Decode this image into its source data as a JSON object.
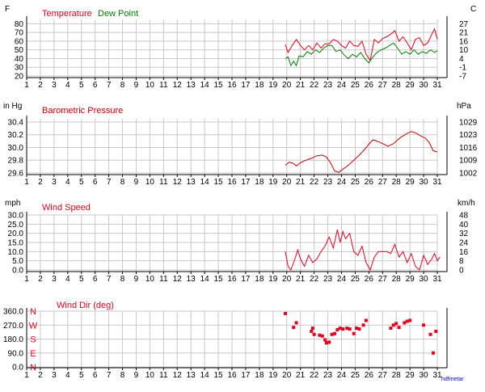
{
  "colors": {
    "temperature": "#e8001c",
    "dewpoint": "#008000",
    "pressure": "#cc0000",
    "wind": "#e8001c",
    "dir": "#e8001c",
    "grid": "#c8c8c8",
    "axis": "#000000",
    "watermark": "#0000cc"
  },
  "watermark": "hdfmetar",
  "chart_data": [
    {
      "type": "line",
      "title_series": [
        "Temperature",
        "Dew Point"
      ],
      "left_unit": "F",
      "right_unit": "C",
      "x_ticks": [
        1,
        2,
        3,
        4,
        5,
        6,
        7,
        8,
        9,
        10,
        11,
        12,
        13,
        14,
        15,
        16,
        17,
        18,
        19,
        20,
        21,
        22,
        23,
        24,
        25,
        26,
        27,
        28,
        29,
        30,
        31
      ],
      "y_ticks": [
        80,
        70,
        60,
        50,
        40,
        30,
        20
      ],
      "y_right_ticks": [
        "27",
        "21",
        "16",
        "10",
        "4",
        "-1",
        "-7"
      ],
      "ylim": [
        20,
        85
      ],
      "series": [
        {
          "name": "Temperature",
          "points": [
            [
              19.9,
              56
            ],
            [
              20.1,
              47
            ],
            [
              20.4,
              55
            ],
            [
              20.7,
              62
            ],
            [
              21.0,
              55
            ],
            [
              21.3,
              50
            ],
            [
              21.6,
              55
            ],
            [
              21.9,
              50
            ],
            [
              22.2,
              58
            ],
            [
              22.5,
              52
            ],
            [
              22.8,
              57
            ],
            [
              23.1,
              57
            ],
            [
              23.4,
              62
            ],
            [
              23.7,
              60
            ],
            [
              24.0,
              55
            ],
            [
              24.3,
              52
            ],
            [
              24.6,
              60
            ],
            [
              24.9,
              55
            ],
            [
              25.2,
              54
            ],
            [
              25.5,
              60
            ],
            [
              25.8,
              45
            ],
            [
              26.1,
              38
            ],
            [
              26.4,
              62
            ],
            [
              26.7,
              58
            ],
            [
              27.0,
              63
            ],
            [
              27.3,
              65
            ],
            [
              27.6,
              68
            ],
            [
              27.9,
              72
            ],
            [
              28.2,
              60
            ],
            [
              28.5,
              65
            ],
            [
              28.8,
              58
            ],
            [
              29.1,
              50
            ],
            [
              29.4,
              62
            ],
            [
              29.7,
              64
            ],
            [
              30.0,
              55
            ],
            [
              30.3,
              58
            ],
            [
              30.6,
              68
            ],
            [
              30.8,
              74
            ],
            [
              31.0,
              62
            ]
          ]
        },
        {
          "name": "Dew Point",
          "points": [
            [
              19.9,
              40
            ],
            [
              20.1,
              42
            ],
            [
              20.3,
              32
            ],
            [
              20.5,
              37
            ],
            [
              20.7,
              32
            ],
            [
              20.9,
              43
            ],
            [
              21.2,
              42
            ],
            [
              21.5,
              48
            ],
            [
              21.8,
              45
            ],
            [
              22.1,
              50
            ],
            [
              22.4,
              47
            ],
            [
              22.7,
              52
            ],
            [
              23.0,
              55
            ],
            [
              23.3,
              55
            ],
            [
              23.6,
              48
            ],
            [
              23.9,
              50
            ],
            [
              24.2,
              44
            ],
            [
              24.5,
              40
            ],
            [
              24.8,
              45
            ],
            [
              25.1,
              42
            ],
            [
              25.4,
              47
            ],
            [
              25.7,
              40
            ],
            [
              26.0,
              35
            ],
            [
              26.3,
              42
            ],
            [
              26.6,
              47
            ],
            [
              26.9,
              50
            ],
            [
              27.2,
              52
            ],
            [
              27.5,
              55
            ],
            [
              27.8,
              58
            ],
            [
              28.1,
              52
            ],
            [
              28.4,
              45
            ],
            [
              28.7,
              48
            ],
            [
              29.0,
              45
            ],
            [
              29.3,
              50
            ],
            [
              29.6,
              45
            ],
            [
              29.9,
              48
            ],
            [
              30.2,
              46
            ],
            [
              30.5,
              50
            ],
            [
              30.8,
              47
            ],
            [
              31.0,
              49
            ]
          ]
        }
      ]
    },
    {
      "type": "line",
      "title": "Barometric Pressure",
      "left_unit": "in Hg",
      "right_unit": "hPa",
      "x_ticks": [
        1,
        2,
        3,
        4,
        5,
        6,
        7,
        8,
        9,
        10,
        11,
        12,
        13,
        14,
        15,
        16,
        17,
        18,
        19,
        20,
        21,
        22,
        23,
        24,
        25,
        26,
        27,
        28,
        29,
        30,
        31
      ],
      "y_ticks": [
        "30.4",
        "30.2",
        "30.0",
        "29.8",
        "29.6"
      ],
      "y_right_ticks": [
        "1029",
        "1023",
        "1016",
        "1009",
        "1002"
      ],
      "ylim": [
        29.6,
        30.45
      ],
      "series": [
        {
          "name": "Barometric Pressure",
          "points": [
            [
              19.9,
              29.72
            ],
            [
              20.2,
              29.77
            ],
            [
              20.5,
              29.75
            ],
            [
              20.7,
              29.71
            ],
            [
              21.0,
              29.76
            ],
            [
              21.4,
              29.8
            ],
            [
              21.8,
              29.83
            ],
            [
              22.2,
              29.87
            ],
            [
              22.6,
              29.88
            ],
            [
              22.9,
              29.85
            ],
            [
              23.2,
              29.76
            ],
            [
              23.5,
              29.63
            ],
            [
              23.8,
              29.61
            ],
            [
              24.1,
              29.66
            ],
            [
              24.5,
              29.72
            ],
            [
              24.9,
              29.8
            ],
            [
              25.3,
              29.88
            ],
            [
              25.7,
              29.97
            ],
            [
              26.0,
              30.05
            ],
            [
              26.3,
              30.12
            ],
            [
              26.6,
              30.1
            ],
            [
              27.0,
              30.06
            ],
            [
              27.4,
              30.02
            ],
            [
              27.8,
              30.06
            ],
            [
              28.1,
              30.12
            ],
            [
              28.4,
              30.17
            ],
            [
              28.8,
              30.22
            ],
            [
              29.1,
              30.25
            ],
            [
              29.4,
              30.23
            ],
            [
              29.8,
              30.18
            ],
            [
              30.1,
              30.15
            ],
            [
              30.4,
              30.08
            ],
            [
              30.7,
              29.95
            ],
            [
              31.0,
              29.93
            ]
          ]
        }
      ]
    },
    {
      "type": "line",
      "title": "Wind Speed",
      "left_unit": "mph",
      "right_unit": "km/h",
      "x_ticks": [
        1,
        2,
        3,
        4,
        5,
        6,
        7,
        8,
        9,
        10,
        11,
        12,
        13,
        14,
        15,
        16,
        17,
        18,
        19,
        20,
        21,
        22,
        23,
        24,
        25,
        26,
        27,
        28,
        29,
        30,
        31
      ],
      "y_ticks": [
        "30.0",
        "25.0",
        "20.0",
        "15.0",
        "10.0",
        "5.0",
        "0.0"
      ],
      "y_right_ticks": [
        "48",
        "40",
        "32",
        "24",
        "16",
        "8",
        "0"
      ],
      "ylim": [
        0,
        30
      ],
      "series": [
        {
          "name": "Wind Speed",
          "points": [
            [
              19.9,
              10
            ],
            [
              20.1,
              2
            ],
            [
              20.3,
              0
            ],
            [
              20.6,
              6
            ],
            [
              20.8,
              11
            ],
            [
              21.0,
              6
            ],
            [
              21.3,
              2
            ],
            [
              21.6,
              8
            ],
            [
              21.9,
              4
            ],
            [
              22.2,
              6
            ],
            [
              22.5,
              10
            ],
            [
              22.8,
              13
            ],
            [
              23.1,
              18
            ],
            [
              23.4,
              12
            ],
            [
              23.7,
              22
            ],
            [
              23.9,
              15
            ],
            [
              24.1,
              21
            ],
            [
              24.3,
              17
            ],
            [
              24.6,
              20
            ],
            [
              24.9,
              10
            ],
            [
              25.2,
              8
            ],
            [
              25.5,
              13
            ],
            [
              25.8,
              4
            ],
            [
              26.1,
              0
            ],
            [
              26.4,
              7
            ],
            [
              26.7,
              10
            ],
            [
              27.0,
              10
            ],
            [
              27.3,
              10
            ],
            [
              27.6,
              9
            ],
            [
              27.9,
              14
            ],
            [
              28.2,
              7
            ],
            [
              28.5,
              10
            ],
            [
              28.8,
              4
            ],
            [
              29.1,
              9
            ],
            [
              29.4,
              2
            ],
            [
              29.7,
              0
            ],
            [
              30.0,
              8
            ],
            [
              30.3,
              3
            ],
            [
              30.6,
              6
            ],
            [
              30.8,
              9
            ],
            [
              31.0,
              5
            ],
            [
              31.2,
              7
            ]
          ]
        }
      ]
    },
    {
      "type": "scatter",
      "title": "Wind Dir (deg)",
      "x_ticks": [
        1,
        2,
        3,
        4,
        5,
        6,
        7,
        8,
        9,
        10,
        11,
        12,
        13,
        14,
        15,
        16,
        17,
        18,
        19,
        20,
        21,
        22,
        23,
        24,
        25,
        26,
        27,
        28,
        29,
        30,
        31
      ],
      "y_ticks": [
        "360.0",
        "270.0",
        "180.0",
        "90.0",
        "0.0"
      ],
      "compass": [
        "N",
        "W",
        "S",
        "E",
        "N"
      ],
      "ylim": [
        0,
        360
      ],
      "series": [
        {
          "name": "Wind Dir",
          "points": [
            [
              19.9,
              345
            ],
            [
              20.5,
              255
            ],
            [
              20.7,
              285
            ],
            [
              21.8,
              230
            ],
            [
              21.9,
              250
            ],
            [
              22.0,
              210
            ],
            [
              22.4,
              205
            ],
            [
              22.6,
              200
            ],
            [
              22.8,
              175
            ],
            [
              22.9,
              155
            ],
            [
              23.1,
              160
            ],
            [
              23.3,
              210
            ],
            [
              23.5,
              215
            ],
            [
              23.7,
              240
            ],
            [
              23.9,
              250
            ],
            [
              24.1,
              245
            ],
            [
              24.4,
              250
            ],
            [
              24.6,
              245
            ],
            [
              24.9,
              215
            ],
            [
              25.1,
              250
            ],
            [
              25.3,
              245
            ],
            [
              25.6,
              270
            ],
            [
              25.8,
              300
            ],
            [
              27.6,
              250
            ],
            [
              27.8,
              270
            ],
            [
              28.0,
              280
            ],
            [
              28.2,
              255
            ],
            [
              28.6,
              285
            ],
            [
              28.8,
              295
            ],
            [
              29.0,
              300
            ],
            [
              30.0,
              270
            ],
            [
              30.5,
              210
            ],
            [
              30.7,
              90
            ],
            [
              30.9,
              230
            ]
          ]
        }
      ]
    }
  ]
}
